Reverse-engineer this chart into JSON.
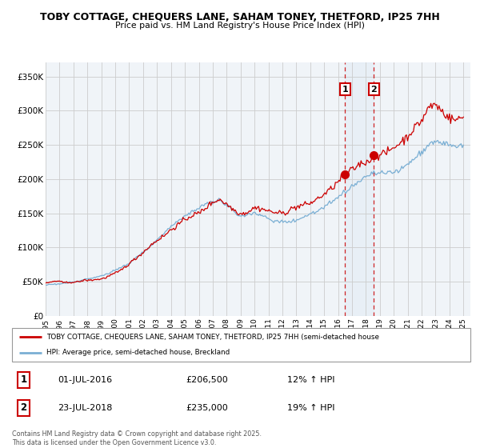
{
  "title": "TOBY COTTAGE, CHEQUERS LANE, SAHAM TONEY, THETFORD, IP25 7HH",
  "subtitle": "Price paid vs. HM Land Registry's House Price Index (HPI)",
  "legend_line1": "TOBY COTTAGE, CHEQUERS LANE, SAHAM TONEY, THETFORD, IP25 7HH (semi-detached house",
  "legend_line2": "HPI: Average price, semi-detached house, Breckland",
  "footer": "Contains HM Land Registry data © Crown copyright and database right 2025.\nThis data is licensed under the Open Government Licence v3.0.",
  "sale1_date": "01-JUL-2016",
  "sale1_price": "£206,500",
  "sale1_hpi": "12% ↑ HPI",
  "sale1_x": 2016.5,
  "sale1_y": 206500,
  "sale2_date": "23-JUL-2018",
  "sale2_price": "£235,000",
  "sale2_hpi": "19% ↑ HPI",
  "sale2_x": 2018.56,
  "sale2_y": 235000,
  "red_color": "#cc0000",
  "blue_color": "#7aafd4",
  "background_color": "#f0f4f8",
  "grid_color": "#cccccc",
  "ylim": [
    0,
    370000
  ],
  "xlim": [
    1995,
    2025.5
  ],
  "yticks": [
    0,
    50000,
    100000,
    150000,
    200000,
    250000,
    300000,
    350000
  ],
  "ytick_labels": [
    "£0",
    "£50K",
    "£100K",
    "£150K",
    "£200K",
    "£250K",
    "£300K",
    "£350K"
  ],
  "xticks": [
    1995,
    1996,
    1997,
    1998,
    1999,
    2000,
    2001,
    2002,
    2003,
    2004,
    2005,
    2006,
    2007,
    2008,
    2009,
    2010,
    2011,
    2012,
    2013,
    2014,
    2015,
    2016,
    2017,
    2018,
    2019,
    2020,
    2021,
    2022,
    2023,
    2024,
    2025
  ]
}
